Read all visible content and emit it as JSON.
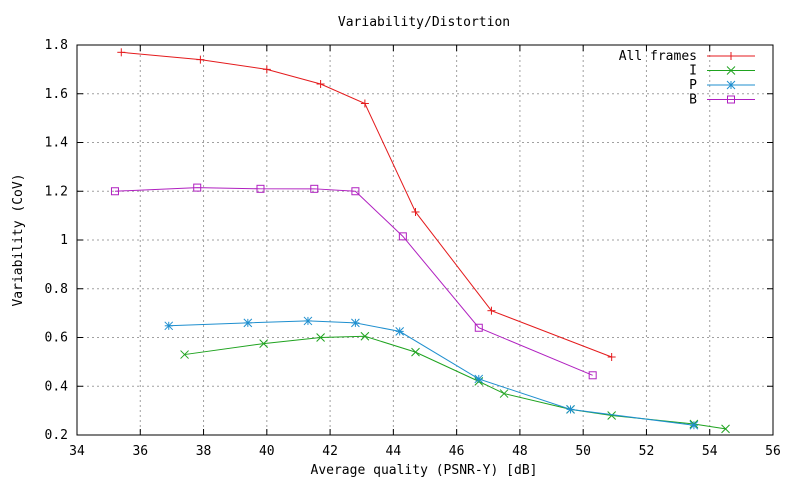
{
  "chart_data": {
    "type": "line",
    "title": "Variability/Distortion",
    "xlabel": "Average quality (PSNR-Y) [dB]",
    "ylabel": "Variability (CoV)",
    "xlim": [
      34,
      56
    ],
    "ylim": [
      0.2,
      1.8
    ],
    "x_ticks": [
      34,
      36,
      38,
      40,
      42,
      44,
      46,
      48,
      50,
      52,
      54,
      56
    ],
    "y_ticks": [
      0.2,
      0.4,
      0.6,
      0.8,
      1,
      1.2,
      1.4,
      1.6,
      1.8
    ],
    "x_tick_labels": [
      "34",
      "36",
      "38",
      "40",
      "42",
      "44",
      "46",
      "48",
      "50",
      "52",
      "54",
      "56"
    ],
    "y_tick_labels": [
      "0.2",
      "0.4",
      "0.6",
      "0.8",
      "1",
      "1.2",
      "1.4",
      "1.6",
      "1.8"
    ],
    "grid": true,
    "legend_position": "top-right",
    "series": [
      {
        "name": "All frames",
        "color": "#e41a1c",
        "marker": "plus",
        "points": [
          [
            35.4,
            1.77
          ],
          [
            37.9,
            1.74
          ],
          [
            40.0,
            1.7
          ],
          [
            41.7,
            1.64
          ],
          [
            43.1,
            1.56
          ],
          [
            44.7,
            1.115
          ],
          [
            47.1,
            0.71
          ],
          [
            50.9,
            0.52
          ]
        ]
      },
      {
        "name": "I",
        "color": "#1fa31f",
        "marker": "cross",
        "points": [
          [
            37.4,
            0.53
          ],
          [
            39.9,
            0.575
          ],
          [
            41.7,
            0.6
          ],
          [
            43.1,
            0.605
          ],
          [
            44.7,
            0.54
          ],
          [
            46.7,
            0.42
          ],
          [
            47.5,
            0.37
          ],
          [
            49.6,
            0.305
          ],
          [
            50.9,
            0.28
          ],
          [
            53.5,
            0.245
          ],
          [
            54.5,
            0.225
          ]
        ]
      },
      {
        "name": "P",
        "color": "#1f8fcf",
        "marker": "star",
        "points": [
          [
            36.9,
            0.648
          ],
          [
            39.4,
            0.66
          ],
          [
            41.3,
            0.668
          ],
          [
            42.8,
            0.66
          ],
          [
            44.2,
            0.625
          ],
          [
            46.7,
            0.43
          ],
          [
            49.6,
            0.305
          ],
          [
            53.5,
            0.24
          ]
        ]
      },
      {
        "name": "B",
        "color": "#b020c0",
        "marker": "square",
        "points": [
          [
            35.2,
            1.2
          ],
          [
            37.8,
            1.215
          ],
          [
            39.8,
            1.21
          ],
          [
            41.5,
            1.21
          ],
          [
            42.8,
            1.2
          ],
          [
            44.3,
            1.015
          ],
          [
            46.7,
            0.64
          ],
          [
            50.3,
            0.445
          ]
        ]
      }
    ]
  }
}
